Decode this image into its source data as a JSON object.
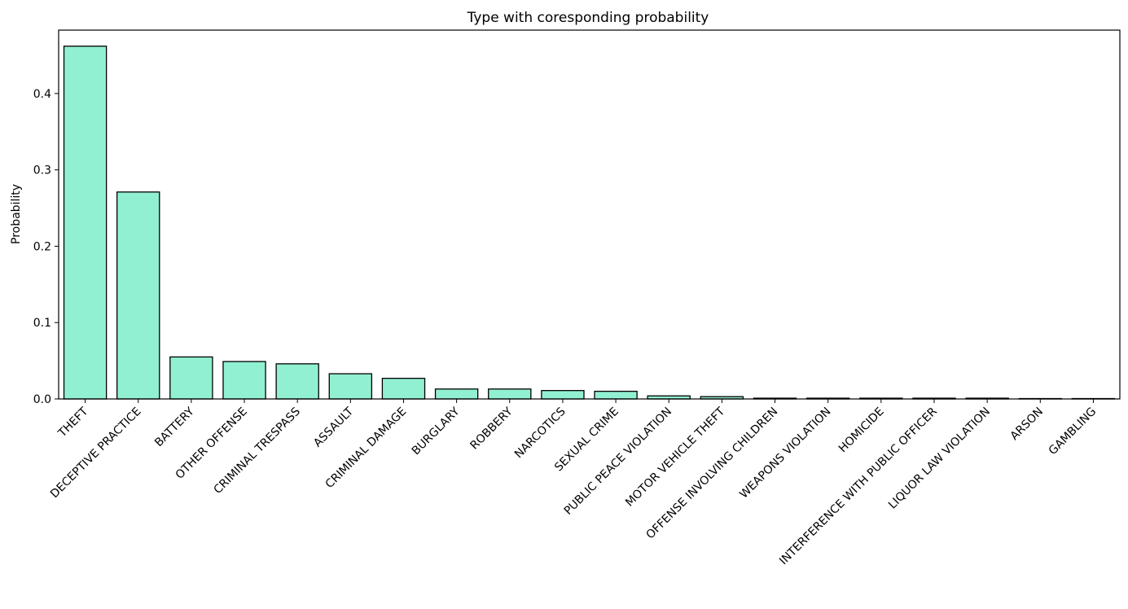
{
  "chart_data": {
    "type": "bar",
    "title": "Type with coresponding probability",
    "xlabel": "",
    "ylabel": "Probability",
    "ylim": [
      0,
      0.483
    ],
    "yticks": [
      "0.0",
      "0.1",
      "0.2",
      "0.3",
      "0.4"
    ],
    "grid": false,
    "bar_color": "#92f0d2",
    "edge_color": "#000000",
    "categories": [
      "THEFT",
      "DECEPTIVE PRACTICE",
      "BATTERY",
      "OTHER OFFENSE",
      "CRIMINAL TRESPASS",
      "ASSAULT",
      "CRIMINAL DAMAGE",
      "BURGLARY",
      "ROBBERY",
      "NARCOTICS",
      "SEXUAL CRIME",
      "PUBLIC PEACE VIOLATION",
      "MOTOR VEHICLE THEFT",
      "OFFENSE INVOLVING CHILDREN",
      "WEAPONS VIOLATION",
      "HOMICIDE",
      "INTERFERENCE WITH PUBLIC OFFICER",
      "LIQUOR LAW VIOLATION",
      "ARSON",
      "GAMBLING"
    ],
    "values": [
      0.462,
      0.271,
      0.055,
      0.049,
      0.046,
      0.033,
      0.027,
      0.013,
      0.013,
      0.011,
      0.01,
      0.004,
      0.003,
      0.001,
      0.001,
      0.001,
      0.001,
      0.001,
      0.0005,
      0.0005
    ]
  }
}
